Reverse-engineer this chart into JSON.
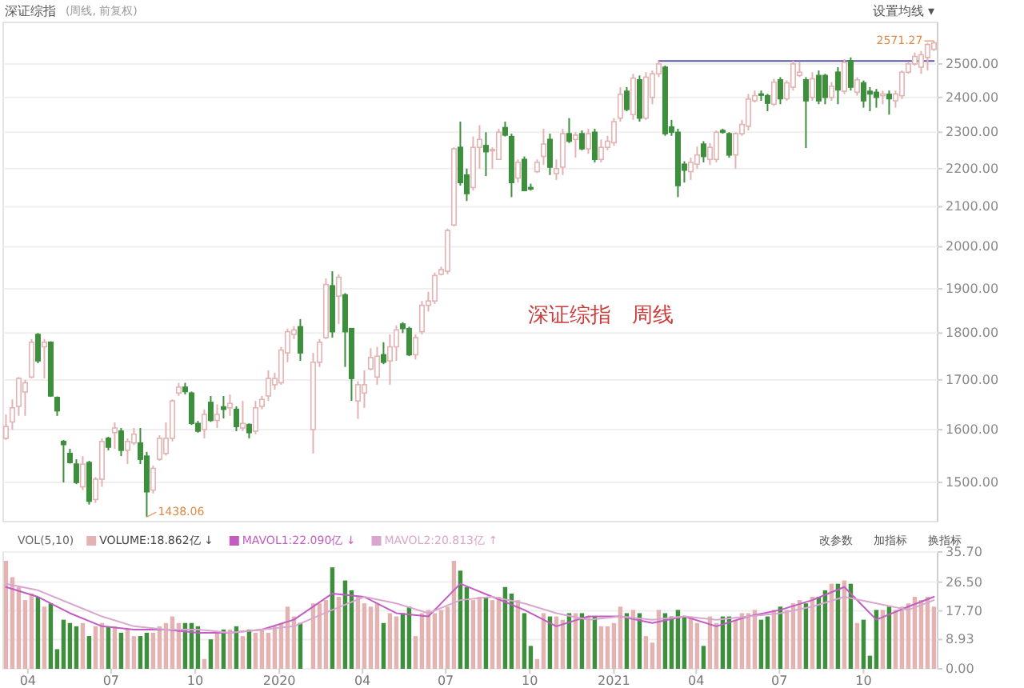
{
  "chart_data": [
    {
      "type": "candlestick",
      "title": "深证综指",
      "subtitle": "(周线, 前复权)",
      "x": [
        "2019-03-08",
        "2019-03-15",
        "2019-03-22",
        "2019-03-29",
        "2019-04-05",
        "2019-04-12",
        "2019-04-19",
        "2019-04-26",
        "2019-05-03",
        "2019-05-10",
        "2019-05-17",
        "2019-05-24",
        "2019-05-31",
        "2019-06-07",
        "2019-06-14",
        "2019-06-21",
        "2019-06-28",
        "2019-07-05",
        "2019-07-12",
        "2019-07-19",
        "2019-07-26",
        "2019-08-02",
        "2019-08-09",
        "2019-08-16",
        "2019-08-23",
        "2019-08-30",
        "2019-09-06",
        "2019-09-13",
        "2019-09-20",
        "2019-09-27",
        "2019-10-04",
        "2019-10-11",
        "2019-10-18",
        "2019-10-25",
        "2019-11-01",
        "2019-11-08",
        "2019-11-15",
        "2019-11-22",
        "2019-11-29",
        "2019-12-06",
        "2019-12-13",
        "2019-12-20",
        "2019-12-27",
        "2020-01-03",
        "2020-01-10",
        "2020-01-17",
        "2020-01-24",
        "2020-02-07",
        "2020-02-14",
        "2020-02-21",
        "2020-02-28",
        "2020-03-06",
        "2020-03-13",
        "2020-03-20",
        "2020-03-27",
        "2020-04-03",
        "2020-04-10",
        "2020-04-17",
        "2020-04-24",
        "2020-05-01",
        "2020-05-08",
        "2020-05-15",
        "2020-05-22",
        "2020-05-29",
        "2020-06-05",
        "2020-06-12",
        "2020-06-19",
        "2020-06-26",
        "2020-07-03",
        "2020-07-10",
        "2020-07-17",
        "2020-07-24",
        "2020-07-31",
        "2020-08-07",
        "2020-08-14",
        "2020-08-21",
        "2020-08-28",
        "2020-09-04",
        "2020-09-11",
        "2020-09-18",
        "2020-09-25",
        "2020-10-02",
        "2020-10-09",
        "2020-10-16",
        "2020-10-23",
        "2020-10-30",
        "2020-11-06",
        "2020-11-13",
        "2020-11-20",
        "2020-11-27",
        "2020-12-04",
        "2020-12-11",
        "2020-12-18",
        "2020-12-25",
        "2021-01-01",
        "2021-01-08",
        "2021-01-15",
        "2021-01-22",
        "2021-01-29",
        "2021-02-05",
        "2021-02-12",
        "2021-02-19",
        "2021-02-26",
        "2021-03-05",
        "2021-03-12",
        "2021-03-19",
        "2021-03-26",
        "2021-04-02",
        "2021-04-09",
        "2021-04-16",
        "2021-04-23",
        "2021-04-30",
        "2021-05-07",
        "2021-05-14",
        "2021-05-21",
        "2021-05-28",
        "2021-06-04",
        "2021-06-11",
        "2021-06-18",
        "2021-06-25",
        "2021-07-02",
        "2021-07-09",
        "2021-07-16",
        "2021-07-23",
        "2021-07-30",
        "2021-08-06",
        "2021-08-13",
        "2021-08-20",
        "2021-08-27",
        "2021-09-03",
        "2021-09-10",
        "2021-09-17",
        "2021-09-24",
        "2021-10-01",
        "2021-10-08",
        "2021-10-15",
        "2021-10-22",
        "2021-10-29",
        "2021-11-05",
        "2021-11-12",
        "2021-11-19",
        "2021-11-26",
        "2021-12-03",
        "2021-12-10",
        "2021-12-17"
      ],
      "ohlc": [
        [
          1583,
          1630,
          1580,
          1606
        ],
        [
          1615,
          1660,
          1600,
          1643
        ],
        [
          1646,
          1706,
          1627,
          1703
        ],
        [
          1675,
          1700,
          1627,
          1694
        ],
        [
          1706,
          1787,
          1703,
          1780
        ],
        [
          1797,
          1800,
          1735,
          1740
        ],
        [
          1770,
          1787,
          1703,
          1780
        ],
        [
          1780,
          1782,
          1665,
          1667
        ],
        [
          1664,
          1666,
          1627,
          1637
        ],
        [
          1577,
          1580,
          1500,
          1571
        ],
        [
          1554,
          1563,
          1535,
          1537
        ],
        [
          1534,
          1543,
          1497,
          1500
        ],
        [
          1492,
          1549,
          1486,
          1534
        ],
        [
          1537,
          1540,
          1460,
          1466
        ],
        [
          1469,
          1510,
          1463,
          1506
        ],
        [
          1506,
          1583,
          1492,
          1577
        ],
        [
          1583,
          1586,
          1560,
          1566
        ],
        [
          1594,
          1614,
          1563,
          1603
        ],
        [
          1597,
          1603,
          1549,
          1560
        ],
        [
          1560,
          1583,
          1534,
          1577
        ],
        [
          1574,
          1603,
          1570,
          1591
        ],
        [
          1574,
          1603,
          1534,
          1543
        ],
        [
          1549,
          1557,
          1438.06,
          1483
        ],
        [
          1486,
          1531,
          1480,
          1526
        ],
        [
          1543,
          1589,
          1540,
          1583
        ],
        [
          1554,
          1614,
          1550,
          1583
        ],
        [
          1583,
          1660,
          1577,
          1657
        ],
        [
          1673,
          1694,
          1667,
          1685
        ],
        [
          1685,
          1694,
          1670,
          1676
        ],
        [
          1673,
          1676,
          1609,
          1612
        ],
        [
          1612,
          1617,
          1594,
          1597
        ],
        [
          1600,
          1640,
          1583,
          1630
        ],
        [
          1654,
          1667,
          1615,
          1618
        ],
        [
          1618,
          1650,
          1603,
          1630
        ],
        [
          1645,
          1667,
          1622,
          1640
        ],
        [
          1643,
          1670,
          1627,
          1652
        ],
        [
          1640,
          1646,
          1597,
          1606
        ],
        [
          1603,
          1657,
          1597,
          1612
        ],
        [
          1610,
          1612,
          1583,
          1594
        ],
        [
          1597,
          1657,
          1591,
          1643
        ],
        [
          1646,
          1667,
          1640,
          1660
        ],
        [
          1667,
          1720,
          1657,
          1703
        ],
        [
          1690,
          1715,
          1680,
          1703
        ],
        [
          1694,
          1770,
          1690,
          1763
        ],
        [
          1757,
          1810,
          1737,
          1803
        ],
        [
          1797,
          1815,
          1787,
          1807
        ],
        [
          1814,
          1831,
          1740,
          1757
        ],
        [
          1600,
          1757,
          1554,
          1737
        ],
        [
          1737,
          1787,
          1727,
          1780
        ],
        [
          1790,
          1924,
          1787,
          1910
        ],
        [
          1907,
          1941,
          1790,
          1803
        ],
        [
          1883,
          1934,
          1820,
          1927
        ],
        [
          1886,
          1890,
          1727,
          1803
        ],
        [
          1810,
          1810,
          1657,
          1703
        ],
        [
          1657,
          1697,
          1621,
          1690
        ],
        [
          1673,
          1720,
          1643,
          1690
        ],
        [
          1723,
          1767,
          1720,
          1747
        ],
        [
          1706,
          1770,
          1690,
          1750
        ],
        [
          1753,
          1780,
          1733,
          1737
        ],
        [
          1740,
          1797,
          1690,
          1770
        ],
        [
          1770,
          1817,
          1740,
          1807
        ],
        [
          1820,
          1824,
          1800,
          1810
        ],
        [
          1810,
          1814,
          1750,
          1753
        ],
        [
          1753,
          1797,
          1743,
          1790
        ],
        [
          1803,
          1872,
          1797,
          1862
        ],
        [
          1862,
          1893,
          1848,
          1872
        ],
        [
          1872,
          1938,
          1865,
          1931
        ],
        [
          1934,
          1952,
          1931,
          1945
        ],
        [
          1941,
          2045,
          1934,
          2040
        ],
        [
          2054,
          2258,
          2050,
          2254
        ],
        [
          2258,
          2330,
          2155,
          2163
        ],
        [
          2183,
          2200,
          2115,
          2134
        ],
        [
          2150,
          2288,
          2142,
          2258
        ],
        [
          2258,
          2320,
          2200,
          2280
        ],
        [
          2263,
          2300,
          2180,
          2246
        ],
        [
          2250,
          2258,
          2200,
          2252
        ],
        [
          2225,
          2310,
          2225,
          2300
        ],
        [
          2313,
          2330,
          2288,
          2292
        ],
        [
          2288,
          2296,
          2125,
          2163
        ],
        [
          2175,
          2225,
          2163,
          2217
        ],
        [
          2225,
          2233,
          2142,
          2142
        ],
        [
          2150,
          2160,
          2142,
          2146
        ],
        [
          2192,
          2225,
          2188,
          2217
        ],
        [
          2233,
          2310,
          2210,
          2267
        ],
        [
          2280,
          2296,
          2183,
          2204
        ],
        [
          2187,
          2225,
          2170,
          2200
        ],
        [
          2204,
          2310,
          2183,
          2296
        ],
        [
          2296,
          2340,
          2270,
          2275
        ],
        [
          2280,
          2300,
          2230,
          2292
        ],
        [
          2296,
          2305,
          2250,
          2254
        ],
        [
          2254,
          2310,
          2240,
          2296
        ],
        [
          2300,
          2310,
          2217,
          2225
        ],
        [
          2225,
          2280,
          2217,
          2258
        ],
        [
          2258,
          2290,
          2250,
          2275
        ],
        [
          2271,
          2340,
          2262,
          2330
        ],
        [
          2340,
          2430,
          2330,
          2409
        ],
        [
          2418,
          2430,
          2360,
          2365
        ],
        [
          2350,
          2470,
          2335,
          2457
        ],
        [
          2452,
          2465,
          2330,
          2340
        ],
        [
          2340,
          2475,
          2335,
          2460
        ],
        [
          2400,
          2480,
          2380,
          2470
        ],
        [
          2470,
          2509,
          2460,
          2500
        ],
        [
          2490,
          2495,
          2290,
          2296
        ],
        [
          2315,
          2335,
          2290,
          2300
        ],
        [
          2300,
          2310,
          2125,
          2155
        ],
        [
          2212,
          2220,
          2163,
          2196
        ],
        [
          2192,
          2230,
          2170,
          2217
        ],
        [
          2212,
          2260,
          2200,
          2237
        ],
        [
          2267,
          2275,
          2217,
          2233
        ],
        [
          2225,
          2270,
          2210,
          2258
        ],
        [
          2225,
          2305,
          2217,
          2300
        ],
        [
          2305,
          2310,
          2296,
          2300
        ],
        [
          2296,
          2300,
          2230,
          2237
        ],
        [
          2237,
          2300,
          2200,
          2296
        ],
        [
          2296,
          2335,
          2290,
          2322
        ],
        [
          2317,
          2410,
          2305,
          2395
        ],
        [
          2390,
          2420,
          2385,
          2405
        ],
        [
          2410,
          2420,
          2390,
          2407
        ],
        [
          2405,
          2410,
          2360,
          2383
        ],
        [
          2380,
          2455,
          2375,
          2445
        ],
        [
          2452,
          2460,
          2380,
          2396
        ],
        [
          2396,
          2450,
          2390,
          2443
        ],
        [
          2430,
          2510,
          2420,
          2500
        ],
        [
          2465,
          2505,
          2460,
          2475
        ],
        [
          2452,
          2460,
          2256,
          2390
        ],
        [
          2400,
          2475,
          2390,
          2455
        ],
        [
          2465,
          2480,
          2380,
          2390
        ],
        [
          2465,
          2470,
          2380,
          2400
        ],
        [
          2400,
          2445,
          2390,
          2433
        ],
        [
          2475,
          2490,
          2380,
          2422
        ],
        [
          2418,
          2515,
          2410,
          2505
        ],
        [
          2510,
          2520,
          2420,
          2430
        ],
        [
          2415,
          2460,
          2405,
          2452
        ],
        [
          2443,
          2450,
          2370,
          2390
        ],
        [
          2418,
          2430,
          2360,
          2410
        ],
        [
          2415,
          2425,
          2370,
          2400
        ],
        [
          2405,
          2420,
          2380,
          2410
        ],
        [
          2409,
          2420,
          2350,
          2396
        ],
        [
          2390,
          2420,
          2370,
          2410
        ],
        [
          2405,
          2480,
          2395,
          2475
        ],
        [
          2475,
          2505,
          2470,
          2500
        ],
        [
          2500,
          2535,
          2495,
          2523
        ],
        [
          2490,
          2540,
          2470,
          2528
        ],
        [
          2520,
          2565,
          2480,
          2560
        ],
        [
          2545,
          2571.27,
          2540,
          2565
        ]
      ],
      "colors": [
        "#e3b3b3",
        "#e3b3b3",
        "#e3b3b3",
        "#e3b3b3",
        "#e3b3b3",
        "#3d8e3d",
        "#e3b3b3",
        "#3d8e3d",
        "#3d8e3d",
        "#3d8e3d",
        "#3d8e3d",
        "#3d8e3d",
        "#e3b3b3",
        "#3d8e3d",
        "#e3b3b3",
        "#e3b3b3",
        "#3d8e3d",
        "#e3b3b3",
        "#3d8e3d",
        "#e3b3b3",
        "#e3b3b3",
        "#3d8e3d",
        "#3d8e3d",
        "#e3b3b3",
        "#e3b3b3",
        "#e3b3b3",
        "#e3b3b3",
        "#e3b3b3",
        "#3d8e3d",
        "#3d8e3d",
        "#3d8e3d",
        "#e3b3b3",
        "#3d8e3d",
        "#e3b3b3",
        "#3d8e3d",
        "#e3b3b3",
        "#3d8e3d",
        "#e3b3b3",
        "#3d8e3d",
        "#e3b3b3",
        "#e3b3b3",
        "#e3b3b3",
        "#e3b3b3",
        "#e3b3b3",
        "#e3b3b3",
        "#e3b3b3",
        "#3d8e3d",
        "#e3b3b3",
        "#e3b3b3",
        "#e3b3b3",
        "#3d8e3d",
        "#e3b3b3",
        "#3d8e3d",
        "#3d8e3d",
        "#e3b3b3",
        "#e3b3b3",
        "#e3b3b3",
        "#e3b3b3",
        "#3d8e3d",
        "#e3b3b3",
        "#e3b3b3",
        "#3d8e3d",
        "#3d8e3d",
        "#e3b3b3",
        "#e3b3b3",
        "#e3b3b3",
        "#e3b3b3",
        "#e3b3b3",
        "#e3b3b3",
        "#e3b3b3",
        "#3d8e3d",
        "#3d8e3d",
        "#e3b3b3",
        "#e3b3b3",
        "#3d8e3d",
        "#e3b3b3",
        "#e3b3b3",
        "#3d8e3d",
        "#3d8e3d",
        "#e3b3b3",
        "#3d8e3d",
        "#3d8e3d",
        "#e3b3b3",
        "#e3b3b3",
        "#3d8e3d",
        "#e3b3b3",
        "#e3b3b3",
        "#3d8e3d",
        "#e3b3b3",
        "#3d8e3d",
        "#e3b3b3",
        "#3d8e3d",
        "#e3b3b3",
        "#e3b3b3",
        "#e3b3b3",
        "#e3b3b3",
        "#3d8e3d",
        "#e3b3b3",
        "#3d8e3d",
        "#e3b3b3",
        "#e3b3b3",
        "#e3b3b3",
        "#3d8e3d",
        "#3d8e3d",
        "#3d8e3d",
        "#3d8e3d",
        "#e3b3b3",
        "#e3b3b3",
        "#3d8e3d",
        "#e3b3b3",
        "#e3b3b3",
        "#3d8e3d",
        "#3d8e3d",
        "#e3b3b3",
        "#e3b3b3",
        "#e3b3b3",
        "#e3b3b3",
        "#3d8e3d",
        "#3d8e3d",
        "#e3b3b3",
        "#3d8e3d",
        "#e3b3b3",
        "#e3b3b3",
        "#e3b3b3",
        "#3d8e3d",
        "#e3b3b3",
        "#3d8e3d",
        "#3d8e3d",
        "#e3b3b3",
        "#3d8e3d",
        "#e3b3b3",
        "#3d8e3d",
        "#e3b3b3",
        "#3d8e3d",
        "#3d8e3d",
        "#3d8e3d",
        "#e3b3b3",
        "#3d8e3d",
        "#e3b3b3",
        "#e3b3b3",
        "#e3b3b3",
        "#e3b3b3",
        "#e3b3b3",
        "#e3b3b3",
        "#e3b3b3"
      ],
      "series": [
        {
          "type": "line",
          "color": "#5b5aa8",
          "x": [
            "2021-02-19",
            "2021-12-17"
          ],
          "values": [
            2509,
            2509
          ]
        }
      ],
      "xlim": [
        "2019-03-05",
        "2021-12-21"
      ],
      "ylim": [
        1430,
        2630
      ],
      "log": true,
      "grid": "y",
      "tick_labels": "y",
      "yticks": [
        {
          "value": 1500,
          "label": "1500.00"
        },
        {
          "value": 1600,
          "label": "1600.00"
        },
        {
          "value": 1700,
          "label": "1700.00"
        },
        {
          "value": 1800,
          "label": "1800.00"
        },
        {
          "value": 1900,
          "label": "1900.00"
        },
        {
          "value": 2000,
          "label": "2000.00"
        },
        {
          "value": 2100,
          "label": "2100.00"
        },
        {
          "value": 2200,
          "label": "2200.00"
        },
        {
          "value": 2300,
          "label": "2300.00"
        },
        {
          "value": 2400,
          "label": "2400.00"
        },
        {
          "value": 2500,
          "label": "2500.00"
        }
      ],
      "annotations": [
        {
          "text": "2571.27",
          "x": "2021-12-17",
          "y": 2571.27
        },
        {
          "text": "1438.06",
          "x": "2019-08-09",
          "y": 1438.06
        },
        "深证综指　周线",
        "设置均线 ▾"
      ]
    },
    {
      "type": "bar",
      "x": [
        "2019-03-08",
        "2019-03-15",
        "2019-03-22",
        "2019-03-29",
        "2019-04-05",
        "2019-04-12",
        "2019-04-19",
        "2019-04-26",
        "2019-05-03",
        "2019-05-10",
        "2019-05-17",
        "2019-05-24",
        "2019-05-31",
        "2019-06-07",
        "2019-06-14",
        "2019-06-21",
        "2019-06-28",
        "2019-07-05",
        "2019-07-12",
        "2019-07-19",
        "2019-07-26",
        "2019-08-02",
        "2019-08-09",
        "2019-08-16",
        "2019-08-23",
        "2019-08-30",
        "2019-09-06",
        "2019-09-13",
        "2019-09-20",
        "2019-09-27",
        "2019-10-04",
        "2019-10-11",
        "2019-10-18",
        "2019-10-25",
        "2019-11-01",
        "2019-11-08",
        "2019-11-15",
        "2019-11-22",
        "2019-11-29",
        "2019-12-06",
        "2019-12-13",
        "2019-12-20",
        "2019-12-27",
        "2020-01-03",
        "2020-01-10",
        "2020-01-17",
        "2020-01-24",
        "2020-02-07",
        "2020-02-14",
        "2020-02-21",
        "2020-02-28",
        "2020-03-06",
        "2020-03-13",
        "2020-03-20",
        "2020-03-27",
        "2020-04-03",
        "2020-04-10",
        "2020-04-17",
        "2020-04-24",
        "2020-05-01",
        "2020-05-08",
        "2020-05-15",
        "2020-05-22",
        "2020-05-29",
        "2020-06-05",
        "2020-06-12",
        "2020-06-19",
        "2020-06-26",
        "2020-07-03",
        "2020-07-10",
        "2020-07-17",
        "2020-07-24",
        "2020-07-31",
        "2020-08-07",
        "2020-08-14",
        "2020-08-21",
        "2020-08-28",
        "2020-09-04",
        "2020-09-11",
        "2020-09-18",
        "2020-09-25",
        "2020-10-02",
        "2020-10-09",
        "2020-10-16",
        "2020-10-23",
        "2020-10-30",
        "2020-11-06",
        "2020-11-13",
        "2020-11-20",
        "2020-11-27",
        "2020-12-04",
        "2020-12-11",
        "2020-12-18",
        "2020-12-25",
        "2021-01-01",
        "2021-01-08",
        "2021-01-15",
        "2021-01-22",
        "2021-01-29",
        "2021-02-05",
        "2021-02-12",
        "2021-02-19",
        "2021-02-26",
        "2021-03-05",
        "2021-03-12",
        "2021-03-19",
        "2021-03-26",
        "2021-04-02",
        "2021-04-09",
        "2021-04-16",
        "2021-04-23",
        "2021-04-30",
        "2021-05-07",
        "2021-05-14",
        "2021-05-21",
        "2021-05-28",
        "2021-06-04",
        "2021-06-11",
        "2021-06-18",
        "2021-06-25",
        "2021-07-02",
        "2021-07-09",
        "2021-07-16",
        "2021-07-23",
        "2021-07-30",
        "2021-08-06",
        "2021-08-13",
        "2021-08-20",
        "2021-08-27",
        "2021-09-03",
        "2021-09-10",
        "2021-09-17",
        "2021-09-24",
        "2021-10-01",
        "2021-10-08",
        "2021-10-15",
        "2021-10-22",
        "2021-10-29",
        "2021-11-05",
        "2021-11-12",
        "2021-11-19",
        "2021-11-26",
        "2021-12-03",
        "2021-12-10",
        "2021-12-17"
      ],
      "series": [
        {
          "type": "bar",
          "name": "VOLUME:18.862亿 ↓",
          "values": [
            33,
            28,
            25,
            21,
            23,
            22,
            19,
            20,
            6,
            15,
            14,
            13,
            14,
            10,
            13,
            14,
            13,
            13,
            11,
            12,
            10,
            10,
            11,
            11,
            13,
            14,
            16,
            14,
            14,
            14,
            13,
            3,
            9,
            11,
            12,
            12,
            13,
            10,
            12,
            11,
            12,
            11,
            13,
            14,
            19,
            16,
            14,
            20,
            20,
            21,
            31,
            22,
            27,
            24,
            22,
            20,
            19,
            20,
            14,
            17,
            16,
            17,
            19,
            10,
            17,
            18,
            17,
            18,
            19,
            33,
            30,
            25,
            21,
            22,
            22,
            21,
            22,
            25,
            23,
            21,
            17,
            7,
            3,
            17,
            16,
            16,
            15,
            17,
            17,
            17,
            16,
            16,
            13,
            13,
            14,
            19,
            17,
            18,
            17,
            10,
            8,
            18,
            17,
            16,
            18,
            16,
            16,
            14,
            7,
            16,
            14,
            16,
            16,
            15,
            17,
            17,
            18,
            15,
            16,
            18,
            19,
            18,
            20,
            21,
            20,
            22,
            22,
            24,
            26,
            26,
            27,
            26,
            14,
            15,
            4,
            18,
            18,
            19,
            18,
            19,
            20,
            22,
            21,
            22,
            19
          ],
          "colors": [
            "#e3b3b3",
            "#e3b3b3",
            "#e3b3b3",
            "#e3b3b3",
            "#e3b3b3",
            "#3d8e3d",
            "#e3b3b3",
            "#3d8e3d",
            "#3d8e3d",
            "#3d8e3d",
            "#3d8e3d",
            "#3d8e3d",
            "#e3b3b3",
            "#3d8e3d",
            "#e3b3b3",
            "#e3b3b3",
            "#3d8e3d",
            "#e3b3b3",
            "#3d8e3d",
            "#e3b3b3",
            "#e3b3b3",
            "#3d8e3d",
            "#3d8e3d",
            "#e3b3b3",
            "#e3b3b3",
            "#e3b3b3",
            "#e3b3b3",
            "#e3b3b3",
            "#3d8e3d",
            "#3d8e3d",
            "#3d8e3d",
            "#e3b3b3",
            "#3d8e3d",
            "#e3b3b3",
            "#3d8e3d",
            "#e3b3b3",
            "#3d8e3d",
            "#e3b3b3",
            "#3d8e3d",
            "#e3b3b3",
            "#e3b3b3",
            "#e3b3b3",
            "#e3b3b3",
            "#e3b3b3",
            "#e3b3b3",
            "#e3b3b3",
            "#3d8e3d",
            "#e3b3b3",
            "#e3b3b3",
            "#e3b3b3",
            "#3d8e3d",
            "#e3b3b3",
            "#3d8e3d",
            "#3d8e3d",
            "#e3b3b3",
            "#e3b3b3",
            "#e3b3b3",
            "#e3b3b3",
            "#3d8e3d",
            "#e3b3b3",
            "#e3b3b3",
            "#3d8e3d",
            "#3d8e3d",
            "#e3b3b3",
            "#e3b3b3",
            "#e3b3b3",
            "#e3b3b3",
            "#e3b3b3",
            "#e3b3b3",
            "#e3b3b3",
            "#3d8e3d",
            "#3d8e3d",
            "#e3b3b3",
            "#e3b3b3",
            "#3d8e3d",
            "#e3b3b3",
            "#e3b3b3",
            "#3d8e3d",
            "#3d8e3d",
            "#e3b3b3",
            "#3d8e3d",
            "#3d8e3d",
            "#e3b3b3",
            "#e3b3b3",
            "#3d8e3d",
            "#e3b3b3",
            "#e3b3b3",
            "#3d8e3d",
            "#e3b3b3",
            "#3d8e3d",
            "#e3b3b3",
            "#3d8e3d",
            "#e3b3b3",
            "#e3b3b3",
            "#e3b3b3",
            "#e3b3b3",
            "#3d8e3d",
            "#e3b3b3",
            "#3d8e3d",
            "#e3b3b3",
            "#e3b3b3",
            "#e3b3b3",
            "#3d8e3d",
            "#3d8e3d",
            "#3d8e3d",
            "#3d8e3d",
            "#e3b3b3",
            "#e3b3b3",
            "#3d8e3d",
            "#e3b3b3",
            "#e3b3b3",
            "#3d8e3d",
            "#3d8e3d",
            "#e3b3b3",
            "#e3b3b3",
            "#e3b3b3",
            "#e3b3b3",
            "#3d8e3d",
            "#3d8e3d",
            "#e3b3b3",
            "#3d8e3d",
            "#e3b3b3",
            "#e3b3b3",
            "#e3b3b3",
            "#3d8e3d",
            "#e3b3b3",
            "#3d8e3d",
            "#3d8e3d",
            "#e3b3b3",
            "#3d8e3d",
            "#e3b3b3",
            "#3d8e3d",
            "#e3b3b3",
            "#3d8e3d",
            "#3d8e3d",
            "#3d8e3d",
            "#e3b3b3",
            "#3d8e3d",
            "#e3b3b3",
            "#e3b3b3",
            "#e3b3b3",
            "#e3b3b3",
            "#e3b3b3",
            "#e3b3b3",
            "#e3b3b3"
          ]
        },
        {
          "type": "line",
          "name": "MAVOL1:22.090亿 ↓",
          "color": "#c25cc2",
          "x": [
            "2019-03-08",
            "2019-04-12",
            "2019-05-17",
            "2019-06-21",
            "2019-07-26",
            "2019-08-30",
            "2019-10-04",
            "2019-11-08",
            "2019-12-13",
            "2020-01-17",
            "2020-02-28",
            "2020-04-03",
            "2020-05-08",
            "2020-06-12",
            "2020-07-17",
            "2020-08-21",
            "2020-09-25",
            "2020-10-30",
            "2020-12-04",
            "2021-01-08",
            "2021-02-12",
            "2021-03-19",
            "2021-04-23",
            "2021-05-28",
            "2021-07-02",
            "2021-08-06",
            "2021-09-10",
            "2021-10-15",
            "2021-11-19",
            "2021-12-17"
          ],
          "values": [
            25,
            22,
            17,
            13,
            12,
            12,
            11,
            11,
            12,
            15,
            23,
            22,
            17,
            16,
            26,
            22,
            18,
            13,
            16,
            16,
            14,
            16,
            13,
            16,
            18,
            21,
            25,
            15,
            19,
            22
          ]
        },
        {
          "type": "line",
          "name": "MAVOL2:20.813亿 ↑",
          "color": "#d9a6cf",
          "x": [
            "2019-03-08",
            "2019-04-12",
            "2019-05-17",
            "2019-06-21",
            "2019-07-26",
            "2019-08-30",
            "2019-10-04",
            "2019-11-08",
            "2019-12-13",
            "2020-01-17",
            "2020-02-28",
            "2020-04-03",
            "2020-05-08",
            "2020-06-12",
            "2020-07-17",
            "2020-08-21",
            "2020-09-25",
            "2020-10-30",
            "2020-12-04",
            "2021-01-08",
            "2021-02-12",
            "2021-03-19",
            "2021-04-23",
            "2021-05-28",
            "2021-07-02",
            "2021-08-06",
            "2021-09-10",
            "2021-10-15",
            "2021-11-19",
            "2021-12-17"
          ],
          "values": [
            26,
            24,
            20,
            16,
            13,
            12,
            12,
            11,
            12,
            13,
            18,
            22,
            20,
            17,
            21,
            22,
            20,
            17,
            15,
            16,
            15,
            16,
            15,
            16,
            17,
            19,
            22,
            20,
            18,
            21
          ]
        }
      ],
      "xlim": [
        "2019-03-05",
        "2021-12-21"
      ],
      "ylim": [
        0,
        35.7
      ],
      "grid": "y",
      "legend": "top left",
      "yticks": [
        {
          "value": 0,
          "label": "0.00"
        },
        {
          "value": 8.93,
          "label": "8.93"
        },
        {
          "value": 17.7,
          "label": "17.70"
        },
        {
          "value": 26.5,
          "label": "26.50"
        },
        {
          "value": 35.7,
          "label": "35.70"
        }
      ],
      "xticks": [
        {
          "value": "2019-04-01",
          "label": "04"
        },
        {
          "value": "2019-07-01",
          "label": "07"
        },
        {
          "value": "2019-10-01",
          "label": "10"
        },
        {
          "value": "2020-01-01",
          "label": "2020"
        },
        {
          "value": "2020-04-01",
          "label": "04"
        },
        {
          "value": "2020-07-01",
          "label": "07"
        },
        {
          "value": "2020-10-01",
          "label": "10"
        },
        {
          "value": "2021-01-01",
          "label": "2021"
        },
        {
          "value": "2021-04-01",
          "label": "04"
        },
        {
          "value": "2021-07-01",
          "label": "07"
        },
        {
          "value": "2021-10-01",
          "label": "10"
        }
      ],
      "annotations": [
        "VOL(5,10)",
        "改参数",
        "加指标",
        "换指标"
      ]
    }
  ]
}
